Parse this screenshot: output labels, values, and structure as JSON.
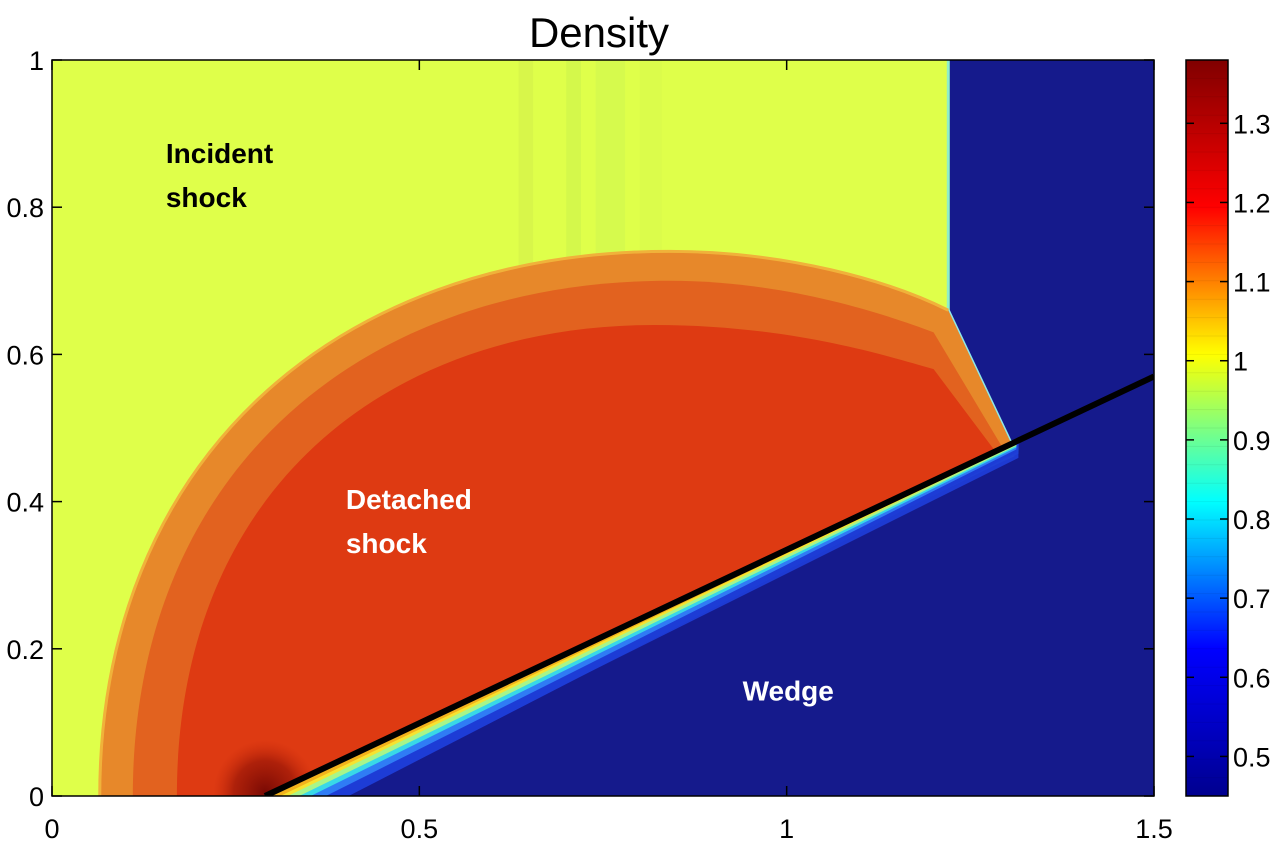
{
  "chart_data": {
    "type": "heatmap",
    "title": "Density",
    "xlabel": "",
    "ylabel": "",
    "xlim": [
      0,
      1.5
    ],
    "ylim": [
      0,
      1
    ],
    "x_ticks": [
      {
        "value": 0,
        "label": "0"
      },
      {
        "value": 0.5,
        "label": "0.5"
      },
      {
        "value": 1,
        "label": "1"
      },
      {
        "value": 1.5,
        "label": "1.5"
      }
    ],
    "y_ticks": [
      {
        "value": 0,
        "label": "0"
      },
      {
        "value": 0.2,
        "label": "0.2"
      },
      {
        "value": 0.4,
        "label": "0.4"
      },
      {
        "value": 0.6,
        "label": "0.6"
      },
      {
        "value": 0.8,
        "label": "0.8"
      },
      {
        "value": 1,
        "label": "1"
      }
    ],
    "colorbar": {
      "range": [
        0.45,
        1.38
      ],
      "ticks": [
        {
          "value": 0.5,
          "label": "0.5"
        },
        {
          "value": 0.6,
          "label": "0.6"
        },
        {
          "value": 0.7,
          "label": "0.7"
        },
        {
          "value": 0.8,
          "label": "0.8"
        },
        {
          "value": 0.9,
          "label": "0.9"
        },
        {
          "value": 1.0,
          "label": "1"
        },
        {
          "value": 1.1,
          "label": "1.1"
        },
        {
          "value": 1.2,
          "label": "1.2"
        },
        {
          "value": 1.3,
          "label": "1.3"
        }
      ],
      "colormap": [
        "#00008f",
        "#0000ff",
        "#00ffff",
        "#ffff00",
        "#ff0000",
        "#800000"
      ]
    },
    "regions": {
      "ambient_density": 1.0,
      "ambient_color": "#dfff4a",
      "shocked_density": 1.25,
      "shocked_color": "#de3a12",
      "shocked_outer_color": "#e7882a",
      "pre_shock_density": 0.45,
      "pre_shock_color": "#151a8c",
      "wedge_color": "#151a8c",
      "incident_shock_x": 1.22,
      "wedge_start": [
        0.29,
        0
      ],
      "wedge_end": [
        1.5,
        0.57
      ],
      "triple_point": [
        1.22,
        0.66
      ],
      "reflection_point": [
        1.31,
        0.47
      ],
      "bubble_top_y": 0.74,
      "bubble_left_x": 0.065
    },
    "annotations": [
      {
        "lines": [
          "Incident",
          "shock"
        ],
        "x": 0.155,
        "y": 0.86,
        "color": "#000000"
      },
      {
        "lines": [
          "Detached",
          "shock"
        ],
        "x": 0.4,
        "y": 0.39,
        "color": "#ffffff"
      },
      {
        "text": "Wedge",
        "x": 0.94,
        "y": 0.13,
        "color": "#ffffff"
      }
    ]
  }
}
